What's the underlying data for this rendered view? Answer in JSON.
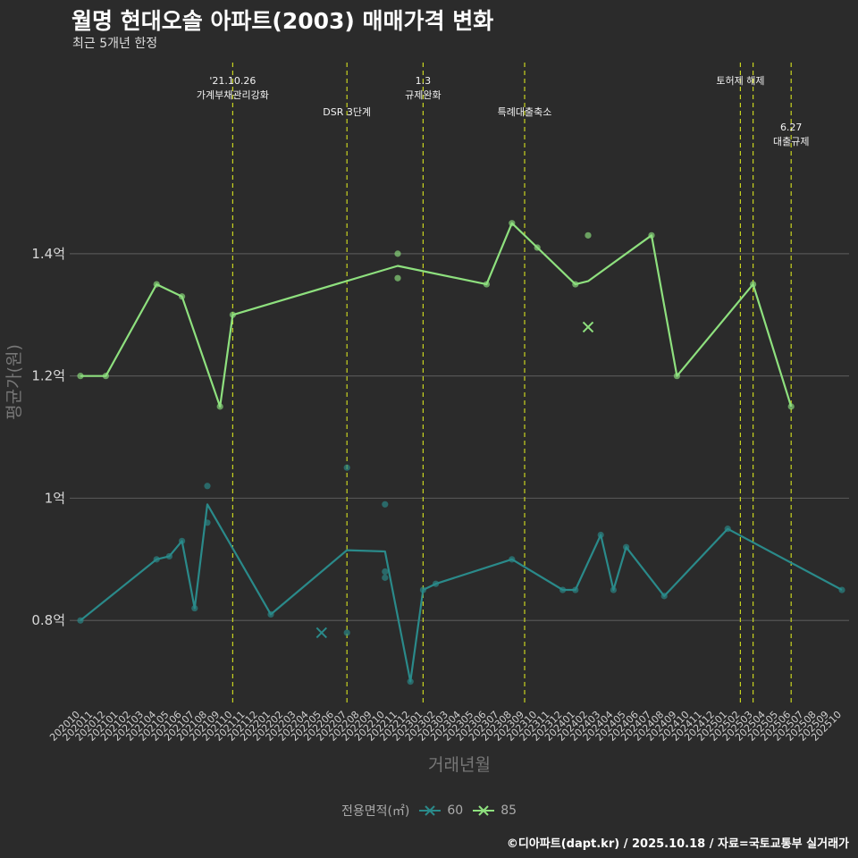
{
  "title": "월명 현대오솔 아파트(2003) 매매가격 변화",
  "subtitle": "최근 5개년 한정",
  "caption": "©디아파트(dapt.kr) / 2025.10.18 / 자료=국토교통부 실거래가",
  "colors": {
    "background": "#2b2b2b",
    "grid": "#555555",
    "series_60": "#2a8a8a",
    "series_85": "#8ee07e",
    "vline": "#c8d420"
  },
  "chart_data": {
    "type": "line",
    "xlabel": "거래년월",
    "ylabel": "평균가(원)",
    "ylim": [
      0.66,
      1.72
    ],
    "yticks": [
      0.8,
      1.0,
      1.2,
      1.4
    ],
    "ytick_labels": [
      "0.8억",
      "1억",
      "1.2억",
      "1.4억"
    ],
    "categories": [
      "202010",
      "202011",
      "202012",
      "202101",
      "202102",
      "202103",
      "202104",
      "202105",
      "202106",
      "202107",
      "202108",
      "202109",
      "202110",
      "202111",
      "202112",
      "202201",
      "202202",
      "202203",
      "202204",
      "202205",
      "202206",
      "202207",
      "202208",
      "202209",
      "202210",
      "202211",
      "202212",
      "202301",
      "202302",
      "202303",
      "202304",
      "202305",
      "202306",
      "202307",
      "202308",
      "202309",
      "202310",
      "202311",
      "202312",
      "202401",
      "202402",
      "202403",
      "202404",
      "202405",
      "202406",
      "202407",
      "202408",
      "202409",
      "202410",
      "202411",
      "202412",
      "202501",
      "202502",
      "202503",
      "202504",
      "202505",
      "202506",
      "202507",
      "202508",
      "202509",
      "202510"
    ],
    "legend_title": "전용면적(㎡)",
    "series": [
      {
        "name": "60",
        "line": [
          [
            "202010",
            0.8
          ],
          [
            "202104",
            0.9
          ],
          [
            "202105",
            0.905
          ],
          [
            "202106",
            0.93
          ],
          [
            "202107",
            0.82
          ],
          [
            "202108",
            0.99
          ],
          [
            "202201",
            0.81
          ],
          [
            "202207",
            0.915
          ],
          [
            "202210",
            0.913
          ],
          [
            "202212",
            0.7
          ],
          [
            "202301",
            0.85
          ],
          [
            "202302",
            0.86
          ],
          [
            "202308",
            0.9
          ],
          [
            "202312",
            0.85
          ],
          [
            "202401",
            0.85
          ],
          [
            "202403",
            0.94
          ],
          [
            "202404",
            0.85
          ],
          [
            "202405",
            0.92
          ],
          [
            "202408",
            0.84
          ],
          [
            "202501",
            0.95
          ],
          [
            "202510",
            0.85
          ]
        ],
        "points": [
          [
            "202010",
            0.8
          ],
          [
            "202104",
            0.9
          ],
          [
            "202105",
            0.905
          ],
          [
            "202106",
            0.93
          ],
          [
            "202107",
            0.82
          ],
          [
            "202108",
            1.02
          ],
          [
            "202108",
            0.96
          ],
          [
            "202201",
            0.81
          ],
          [
            "202207",
            1.05
          ],
          [
            "202207",
            0.78
          ],
          [
            "202210",
            0.99
          ],
          [
            "202210",
            0.88
          ],
          [
            "202210",
            0.87
          ],
          [
            "202212",
            0.7
          ],
          [
            "202301",
            0.85
          ],
          [
            "202302",
            0.86
          ],
          [
            "202308",
            0.9
          ],
          [
            "202312",
            0.85
          ],
          [
            "202401",
            0.85
          ],
          [
            "202403",
            0.94
          ],
          [
            "202404",
            0.85
          ],
          [
            "202405",
            0.92
          ],
          [
            "202408",
            0.84
          ],
          [
            "202501",
            0.95
          ],
          [
            "202510",
            0.85
          ]
        ],
        "crosses": [
          [
            "202205",
            0.78
          ]
        ]
      },
      {
        "name": "85",
        "line": [
          [
            "202010",
            1.2
          ],
          [
            "202012",
            1.2
          ],
          [
            "202104",
            1.35
          ],
          [
            "202106",
            1.33
          ],
          [
            "202109",
            1.15
          ],
          [
            "202110",
            1.3
          ],
          [
            "202211",
            1.38
          ],
          [
            "202306",
            1.35
          ],
          [
            "202308",
            1.45
          ],
          [
            "202310",
            1.41
          ],
          [
            "202401",
            1.35
          ],
          [
            "202402",
            1.355
          ],
          [
            "202407",
            1.43
          ],
          [
            "202409",
            1.2
          ],
          [
            "202503",
            1.35
          ],
          [
            "202506",
            1.15
          ]
        ],
        "points": [
          [
            "202010",
            1.2
          ],
          [
            "202012",
            1.2
          ],
          [
            "202104",
            1.35
          ],
          [
            "202106",
            1.33
          ],
          [
            "202109",
            1.15
          ],
          [
            "202110",
            1.3
          ],
          [
            "202211",
            1.4
          ],
          [
            "202211",
            1.36
          ],
          [
            "202306",
            1.35
          ],
          [
            "202308",
            1.45
          ],
          [
            "202310",
            1.41
          ],
          [
            "202401",
            1.35
          ],
          [
            "202402",
            1.43
          ],
          [
            "202407",
            1.43
          ],
          [
            "202409",
            1.2
          ],
          [
            "202503",
            1.35
          ],
          [
            "202506",
            1.15
          ]
        ],
        "crosses": [
          [
            "202402",
            1.28
          ]
        ]
      }
    ],
    "annotations": [
      {
        "x": "202110",
        "lines": [
          "'21.10.26",
          "가계부채관리강화"
        ],
        "level": 0
      },
      {
        "x": "202207",
        "lines": [
          "DSR 3단계"
        ],
        "level": 1
      },
      {
        "x": "202301",
        "lines": [
          "1.3",
          "규제완화"
        ],
        "level": 0
      },
      {
        "x": "202309",
        "lines": [
          "특례대출축소"
        ],
        "level": 1
      },
      {
        "x": "202502",
        "lines": [
          "토허제 해제"
        ],
        "level": 0,
        "anchor": "center-right"
      },
      {
        "x": "202503",
        "lines": [],
        "level": 0
      },
      {
        "x": "202506",
        "lines": [
          "6.27",
          "대출규제"
        ],
        "level": 2
      }
    ]
  }
}
